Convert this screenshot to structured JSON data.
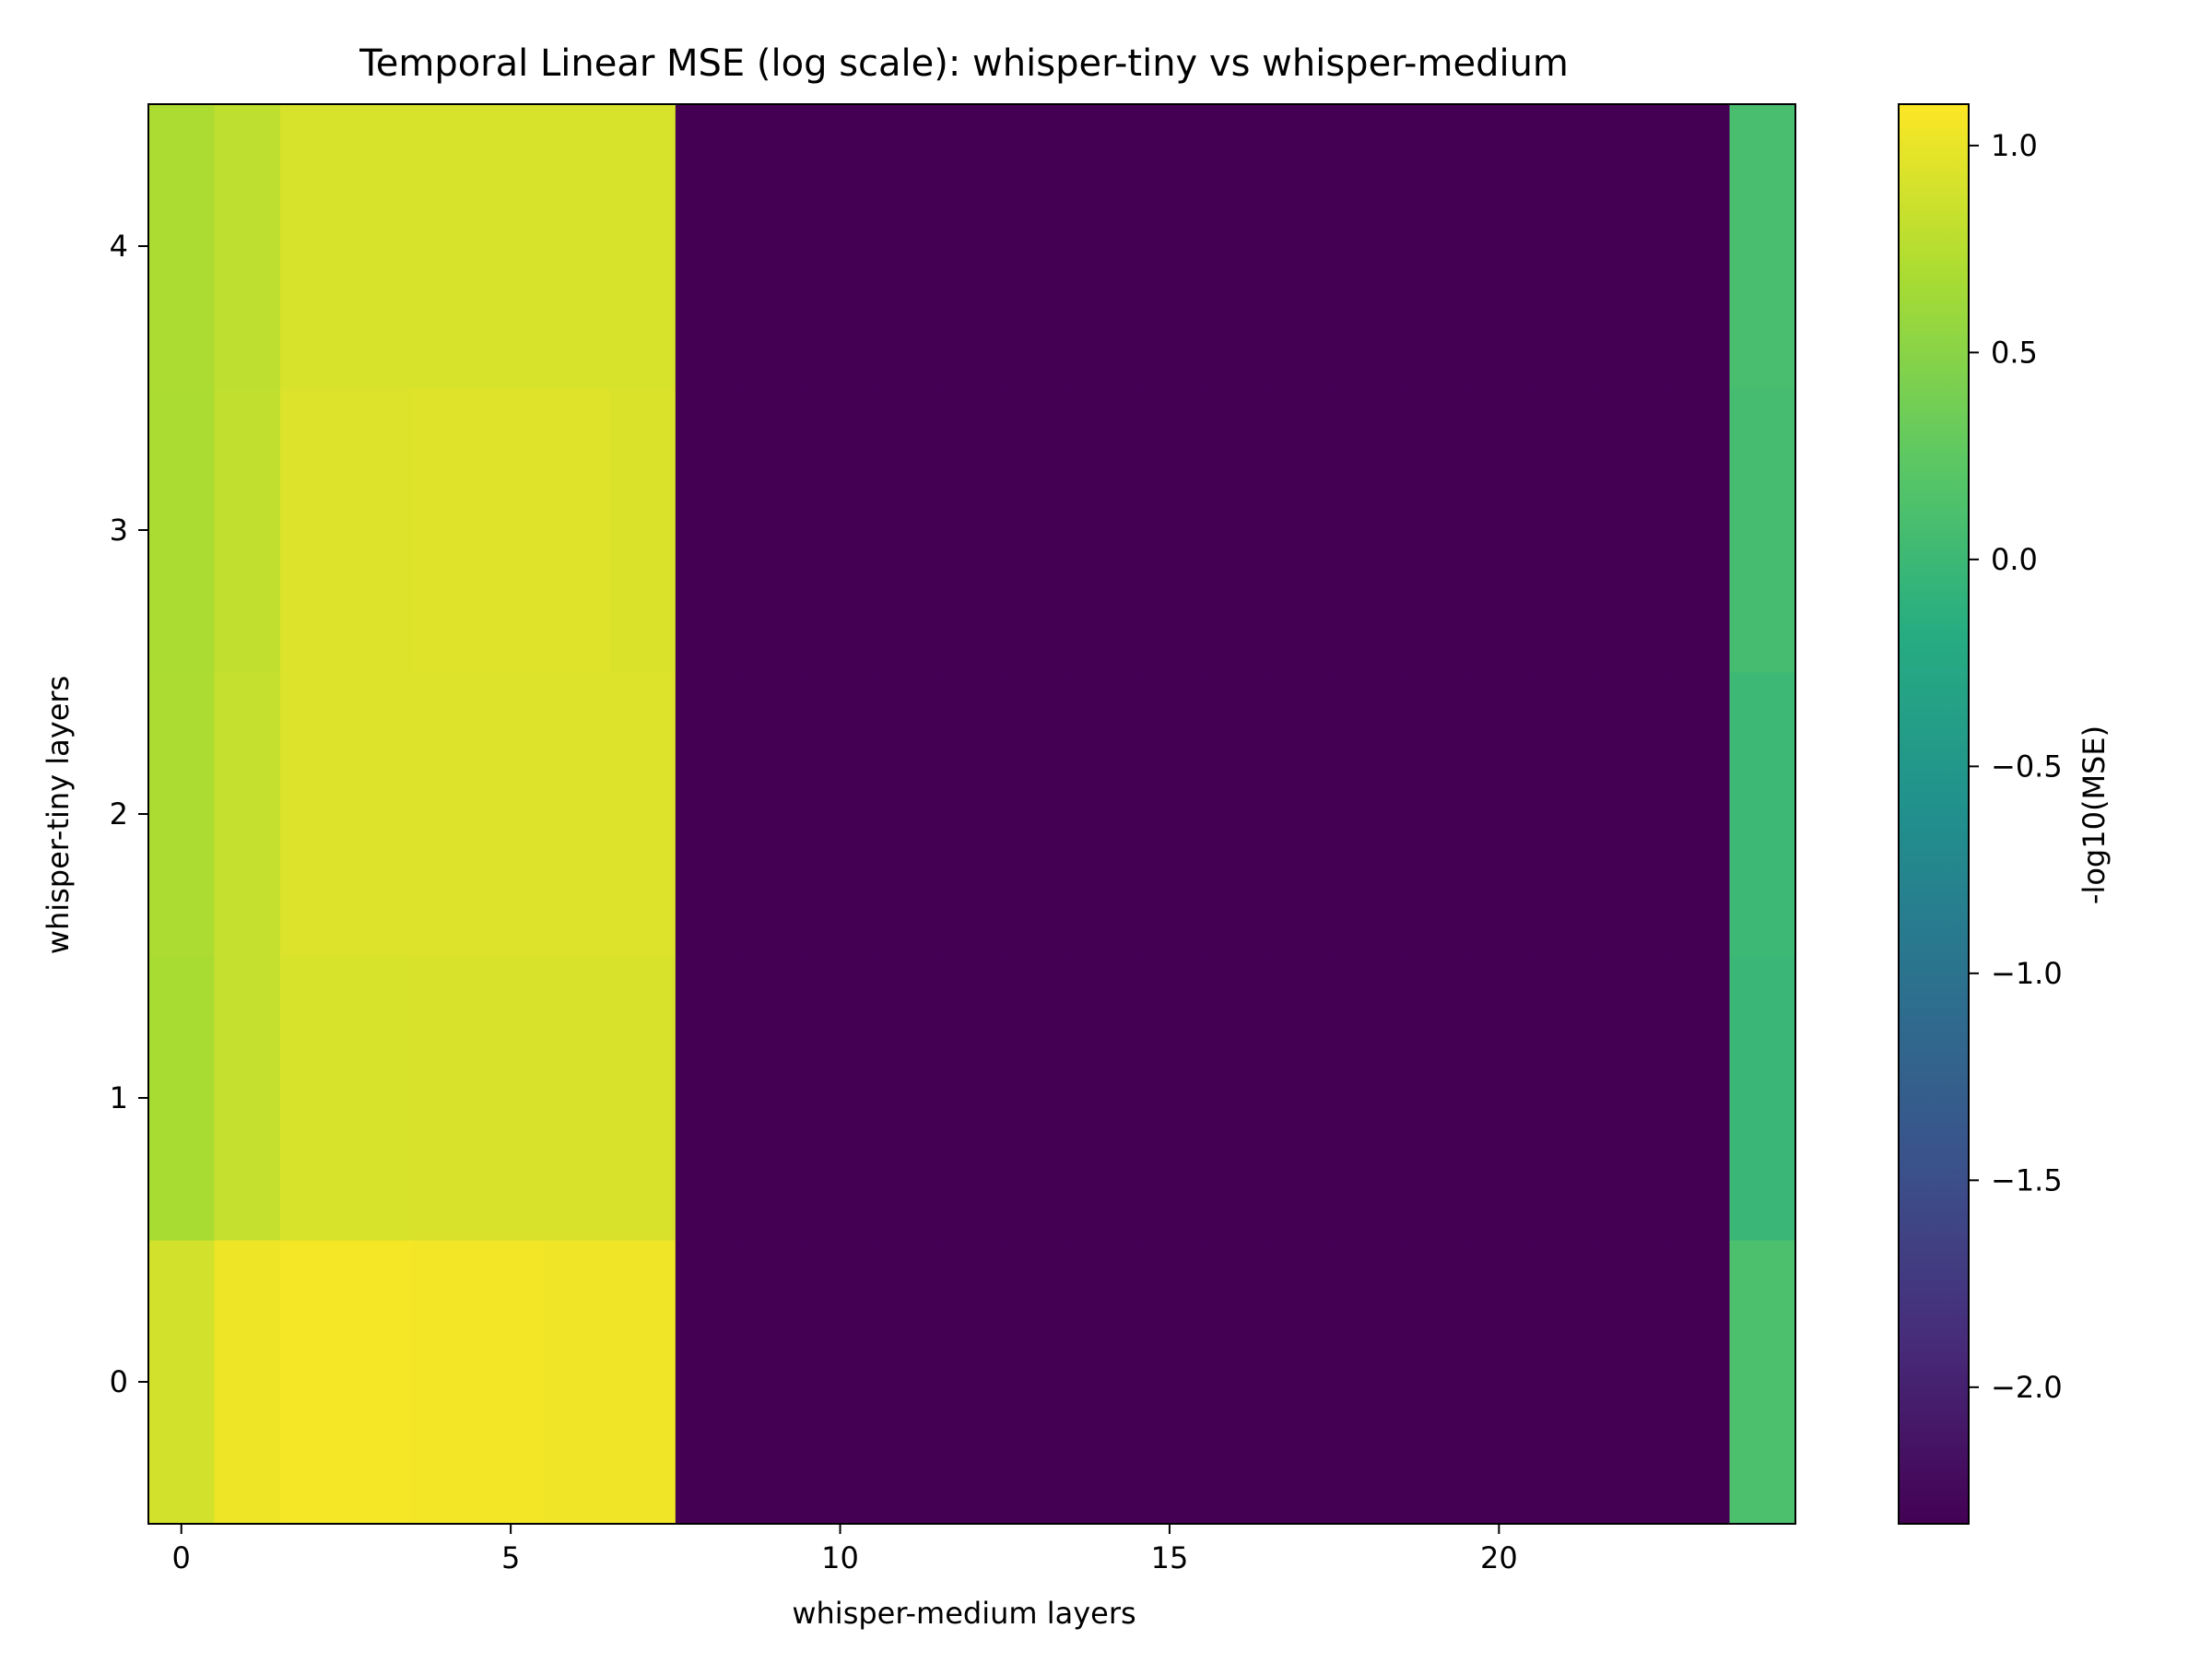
{
  "chart_data": {
    "type": "heatmap",
    "title": "Temporal Linear MSE (log scale): whisper-tiny vs whisper-medium",
    "xlabel": "whisper-medium layers",
    "ylabel": "whisper-tiny layers",
    "colorbar_label": "-log10(MSE)",
    "colormap": "viridis",
    "x_categories": [
      0,
      1,
      2,
      3,
      4,
      5,
      6,
      7,
      8,
      9,
      10,
      11,
      12,
      13,
      14,
      15,
      16,
      17,
      18,
      19,
      20,
      21,
      22,
      23,
      24
    ],
    "y_categories": [
      0,
      1,
      2,
      3,
      4
    ],
    "xlim": [
      -0.5,
      24.5
    ],
    "ylim": [
      -0.5,
      4.5
    ],
    "clim": [
      -2.33,
      1.1
    ],
    "x_ticks": [
      0,
      5,
      10,
      15,
      20
    ],
    "x_tick_labels": [
      "0",
      "5",
      "10",
      "15",
      "20"
    ],
    "y_ticks": [
      0,
      1,
      2,
      3,
      4
    ],
    "y_tick_labels": [
      "0",
      "1",
      "2",
      "3",
      "4"
    ],
    "colorbar_ticks": [
      1.0,
      0.5,
      0.0,
      -0.5,
      -1.0,
      -1.5,
      -2.0
    ],
    "colorbar_tick_labels": [
      "1.0",
      "0.5",
      "0.0",
      "−0.5",
      "−1.0",
      "−1.5",
      "−2.0"
    ],
    "values": [
      [
        0.88,
        1.03,
        1.06,
        1.06,
        1.05,
        1.05,
        1.04,
        1.04,
        -2.33,
        -2.33,
        -2.33,
        -2.33,
        -2.33,
        -2.33,
        -2.33,
        -2.33,
        -2.33,
        -2.33,
        -2.33,
        -2.33,
        -2.33,
        -2.33,
        -2.33,
        -2.33,
        0.12
      ],
      [
        0.68,
        0.82,
        0.91,
        0.91,
        0.92,
        0.92,
        0.92,
        0.92,
        -2.33,
        -2.33,
        -2.33,
        -2.33,
        -2.33,
        -2.33,
        -2.33,
        -2.33,
        -2.33,
        -2.33,
        -2.33,
        -2.33,
        -2.33,
        -2.33,
        -2.33,
        -2.33,
        -0.02
      ],
      [
        0.7,
        0.82,
        0.94,
        0.94,
        0.94,
        0.94,
        0.94,
        0.94,
        -2.33,
        -2.33,
        -2.33,
        -2.33,
        -2.33,
        -2.33,
        -2.33,
        -2.33,
        -2.33,
        -2.33,
        -2.33,
        -2.33,
        -2.33,
        -2.33,
        -2.33,
        -2.33,
        0.0
      ],
      [
        0.69,
        0.8,
        0.94,
        0.94,
        0.95,
        0.95,
        0.95,
        0.93,
        -2.33,
        -2.33,
        -2.33,
        -2.33,
        -2.33,
        -2.33,
        -2.33,
        -2.33,
        -2.33,
        -2.33,
        -2.33,
        -2.33,
        -2.33,
        -2.33,
        -2.33,
        -2.33,
        0.06
      ],
      [
        0.7,
        0.79,
        0.91,
        0.91,
        0.91,
        0.91,
        0.91,
        0.91,
        -2.33,
        -2.33,
        -2.33,
        -2.33,
        -2.33,
        -2.33,
        -2.33,
        -2.33,
        -2.33,
        -2.33,
        -2.33,
        -2.33,
        -2.33,
        -2.33,
        -2.33,
        -2.33,
        0.09
      ]
    ]
  }
}
